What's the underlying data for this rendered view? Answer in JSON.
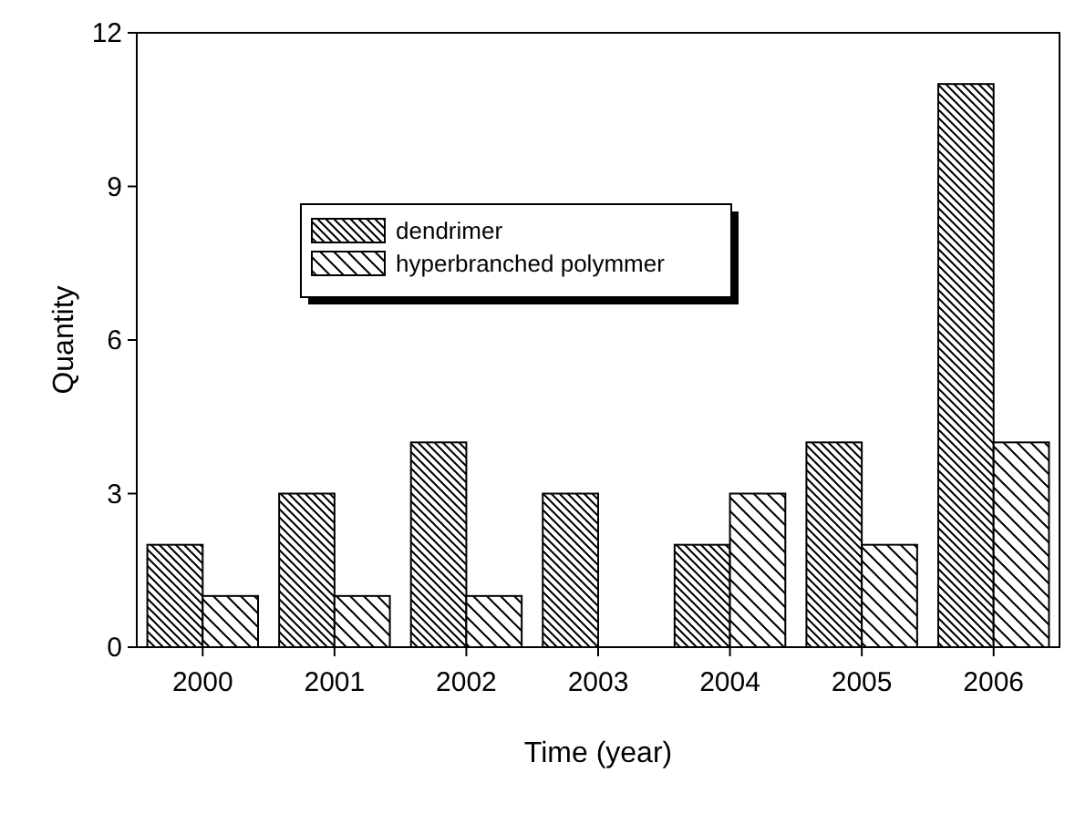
{
  "chart_data": {
    "type": "bar",
    "xlabel": "Time (year)",
    "ylabel": "Quantity",
    "categories": [
      "2000",
      "2001",
      "2002",
      "2003",
      "2004",
      "2005",
      "2006"
    ],
    "series": [
      {
        "name": "dendrimer",
        "color": "#000000",
        "values": [
          2,
          3,
          4,
          3,
          2,
          4,
          11
        ]
      },
      {
        "name": "hyperbranched polymmer",
        "color": "#000000",
        "values": [
          1,
          1,
          1,
          0,
          3,
          2,
          4
        ]
      }
    ],
    "ylim": [
      0,
      12
    ],
    "yticks": [
      0,
      3,
      6,
      9,
      12
    ],
    "grid": false,
    "legend": "top left"
  }
}
